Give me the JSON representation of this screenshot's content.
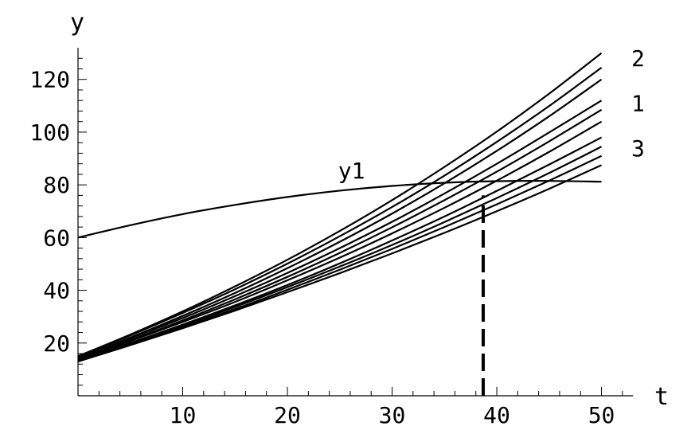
{
  "chart_data": {
    "type": "line",
    "xlabel": "t",
    "ylabel": "y",
    "xlim": [
      0,
      53
    ],
    "ylim": [
      0,
      132
    ],
    "x_ticks": [
      10,
      20,
      30,
      40,
      50
    ],
    "y_ticks": [
      20,
      40,
      60,
      80,
      100,
      120
    ],
    "grid": false,
    "x": [
      0,
      5,
      10,
      15,
      20,
      25,
      30,
      35,
      40,
      45,
      50
    ],
    "series": [
      {
        "name": "y1",
        "values": [
          60,
          64.7,
          68.9,
          72.4,
          75.4,
          77.8,
          79.6,
          80.8,
          81.4,
          81.5,
          81.2
        ]
      },
      {
        "values": [
          15,
          23.2,
          32.0,
          41.5,
          51.6,
          62.5,
          74.2,
          86.8,
          100.2,
          114.6,
          130.0
        ]
      },
      {
        "values": [
          15,
          22.9,
          31.4,
          40.4,
          50.1,
          60.5,
          71.6,
          83.5,
          96.3,
          109.9,
          124.5
        ]
      },
      {
        "values": [
          14.5,
          22.1,
          30.3,
          39.0,
          48.4,
          58.4,
          69.1,
          80.6,
          92.9,
          106.0,
          120.0
        ]
      },
      {
        "values": [
          14.5,
          21.8,
          29.5,
          37.8,
          46.6,
          56.0,
          66.0,
          76.7,
          88.0,
          99.9,
          112.0
        ]
      },
      {
        "values": [
          14,
          21.1,
          28.6,
          36.6,
          45.1,
          54.2,
          63.9,
          74.2,
          85.0,
          96.5,
          108.5
        ]
      },
      {
        "values": [
          14,
          20.8,
          28.0,
          35.6,
          43.8,
          52.4,
          61.6,
          71.3,
          81.6,
          92.5,
          104.0
        ]
      },
      {
        "values": [
          13.5,
          20.1,
          27.0,
          34.3,
          42.0,
          50.2,
          58.9,
          68.0,
          77.7,
          87.7,
          98.0
        ]
      },
      {
        "values": [
          13.5,
          19.9,
          26.6,
          33.7,
          41.2,
          49.0,
          57.2,
          65.9,
          75.0,
          84.5,
          94.5
        ]
      },
      {
        "values": [
          13,
          19.4,
          26.0,
          32.9,
          40.2,
          47.8,
          55.7,
          64.0,
          72.6,
          81.6,
          91.0
        ]
      },
      {
        "values": [
          13,
          19.2,
          25.6,
          32.3,
          39.3,
          46.5,
          54.0,
          61.8,
          70.0,
          78.5,
          87.5
        ]
      }
    ],
    "annotations": [
      {
        "text": "y1",
        "x": 25,
        "y": 85.5
      },
      {
        "text": "2",
        "x": 53,
        "y": 128
      },
      {
        "text": "1",
        "x": 53,
        "y": 111
      },
      {
        "text": "3",
        "x": 53,
        "y": 94
      }
    ],
    "vertical_marker": {
      "x": 38.7,
      "y_from": 0,
      "y_to": 76,
      "style": "dashed"
    }
  }
}
